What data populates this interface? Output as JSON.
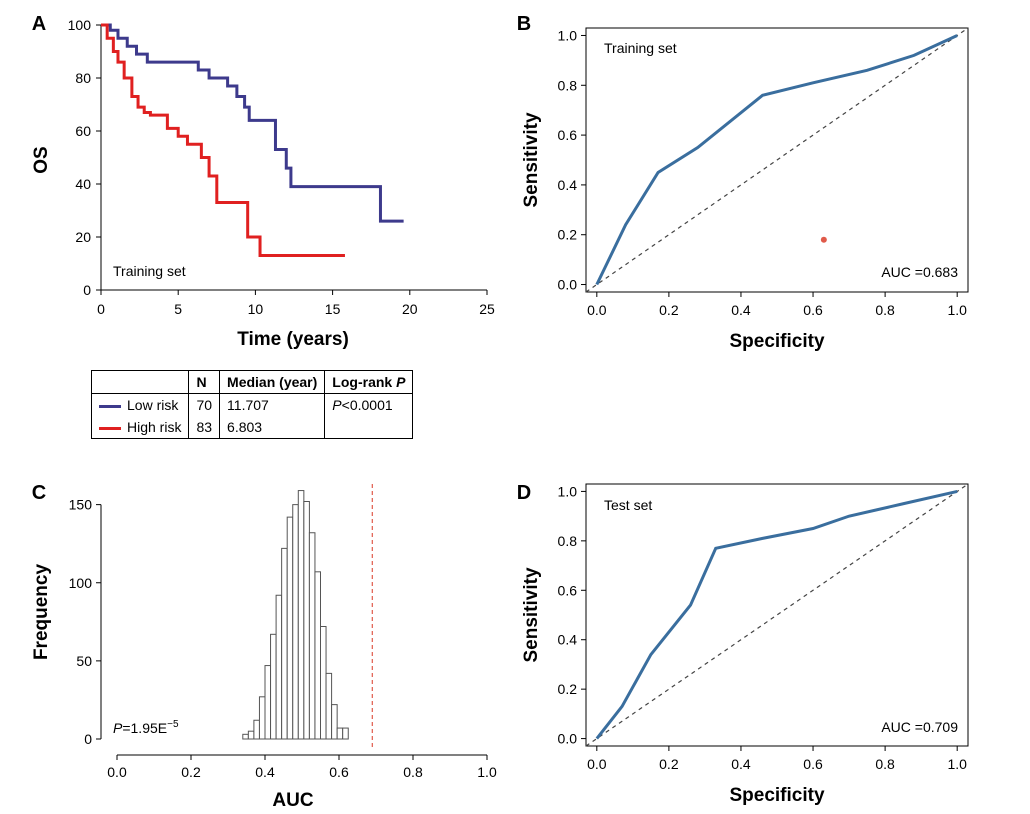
{
  "chart_data": [
    {
      "panel": "A",
      "type": "line",
      "subtype": "kaplan-meier",
      "annotation": "Training set",
      "xlabel": "Time (years)",
      "ylabel": "OS",
      "xlim": [
        0,
        25
      ],
      "ylim": [
        0,
        100
      ],
      "xticks": [
        0,
        5,
        10,
        15,
        20,
        25
      ],
      "yticks": [
        0,
        20,
        40,
        60,
        80,
        100
      ],
      "series": [
        {
          "name": "Low risk",
          "color": "#3d3a8c",
          "x": [
            0,
            0.6,
            0.6,
            1.1,
            1.1,
            1.7,
            1.7,
            2.3,
            2.3,
            3.0,
            3.0,
            6.3,
            6.3,
            7.0,
            7.0,
            8.2,
            8.2,
            8.8,
            8.8,
            9.3,
            9.3,
            9.6,
            9.6,
            10.3,
            10.3,
            11.3,
            11.3,
            11.7,
            11.7,
            12.0,
            12.0,
            12.3,
            12.3,
            18.1,
            18.1,
            19.6
          ],
          "y": [
            100,
            100,
            98,
            98,
            95,
            95,
            92,
            92,
            89,
            89,
            86,
            86,
            83,
            83,
            80,
            80,
            77,
            77,
            73,
            73,
            69,
            69,
            64,
            64,
            64,
            64,
            53,
            53,
            53,
            53,
            46,
            46,
            39,
            39,
            26,
            26
          ]
        },
        {
          "name": "High risk",
          "color": "#e02020",
          "x": [
            0,
            0.4,
            0.4,
            0.8,
            0.8,
            1.1,
            1.1,
            1.5,
            1.5,
            2.0,
            2.0,
            2.4,
            2.4,
            2.8,
            2.8,
            3.2,
            3.2,
            4.3,
            4.3,
            5.0,
            5.0,
            5.6,
            5.6,
            6.5,
            6.5,
            7.0,
            7.0,
            7.5,
            7.5,
            9.5,
            9.5,
            10.3,
            10.3,
            15.8
          ],
          "y": [
            100,
            100,
            95,
            95,
            90,
            90,
            86,
            86,
            80,
            80,
            73,
            73,
            69,
            69,
            67,
            67,
            66,
            66,
            61,
            61,
            58,
            58,
            55,
            55,
            50,
            50,
            43,
            43,
            33,
            33,
            20,
            20,
            13,
            13
          ]
        }
      ],
      "table": {
        "headers": [
          "",
          "N",
          "Median (year)",
          "Log-rank P"
        ],
        "rows": [
          {
            "group": "Low risk",
            "color": "#3d3a8c",
            "n": "70",
            "median": "11.707",
            "p": "<0.0001",
            "p_letter": "P"
          },
          {
            "group": "High risk",
            "color": "#e02020",
            "n": "83",
            "median": "6.803",
            "p": "",
            "p_letter": ""
          }
        ]
      }
    },
    {
      "panel": "B",
      "type": "line",
      "subtype": "roc",
      "annotation": "Training set",
      "auc_label": "AUC =0.683",
      "xlabel": "Specificity",
      "ylabel": "Sensitivity",
      "xlim": [
        -0.03,
        1.03
      ],
      "ylim": [
        -0.03,
        1.03
      ],
      "xticks": [
        0.0,
        0.2,
        0.4,
        0.6,
        0.8,
        1.0
      ],
      "yticks": [
        0.0,
        0.2,
        0.4,
        0.6,
        0.8,
        1.0
      ],
      "tick_labels": [
        "0.0",
        "0.2",
        "0.4",
        "0.6",
        "0.8",
        "1.0"
      ],
      "curve": {
        "color": "#3a6e9e",
        "x": [
          0.0,
          0.08,
          0.17,
          0.28,
          0.46,
          0.6,
          0.75,
          0.88,
          1.0
        ],
        "y": [
          0.0,
          0.24,
          0.45,
          0.55,
          0.76,
          0.81,
          0.86,
          0.92,
          1.0
        ]
      },
      "extra_point": {
        "x": 0.63,
        "y": 0.18,
        "color": "#e05a4a"
      }
    },
    {
      "panel": "C",
      "type": "bar",
      "subtype": "histogram",
      "xlabel": "AUC",
      "ylabel": "Frequency",
      "xlim": [
        0.0,
        1.0
      ],
      "ylim": [
        0,
        160
      ],
      "xticks": [
        0.0,
        0.2,
        0.4,
        0.6,
        0.8,
        1.0
      ],
      "tick_labels_x": [
        "0.0",
        "0.2",
        "0.4",
        "0.6",
        "0.8",
        "1.0"
      ],
      "yticks": [
        0,
        50,
        100,
        150
      ],
      "bin_start": 0.34,
      "bin_width": 0.015,
      "values": [
        3,
        5,
        12,
        27,
        47,
        67,
        92,
        122,
        142,
        150,
        159,
        152,
        132,
        107,
        72,
        42,
        22,
        7,
        7
      ],
      "reference_line": {
        "x": 0.69,
        "color": "#e05a4a"
      },
      "p_annotation": {
        "letter": "P",
        "text": "=1.95E",
        "exp": "−5"
      }
    },
    {
      "panel": "D",
      "type": "line",
      "subtype": "roc",
      "annotation": "Test set",
      "auc_label": "AUC =0.709",
      "xlabel": "Specificity",
      "ylabel": "Sensitivity",
      "xlim": [
        -0.03,
        1.03
      ],
      "ylim": [
        -0.03,
        1.03
      ],
      "xticks": [
        0.0,
        0.2,
        0.4,
        0.6,
        0.8,
        1.0
      ],
      "yticks": [
        0.0,
        0.2,
        0.4,
        0.6,
        0.8,
        1.0
      ],
      "tick_labels": [
        "0.0",
        "0.2",
        "0.4",
        "0.6",
        "0.8",
        "1.0"
      ],
      "curve": {
        "color": "#3a6e9e",
        "x": [
          0.0,
          0.07,
          0.15,
          0.26,
          0.33,
          0.46,
          0.6,
          0.7,
          0.85,
          1.0
        ],
        "y": [
          0.0,
          0.13,
          0.34,
          0.54,
          0.77,
          0.81,
          0.85,
          0.9,
          0.95,
          1.0
        ]
      }
    }
  ]
}
